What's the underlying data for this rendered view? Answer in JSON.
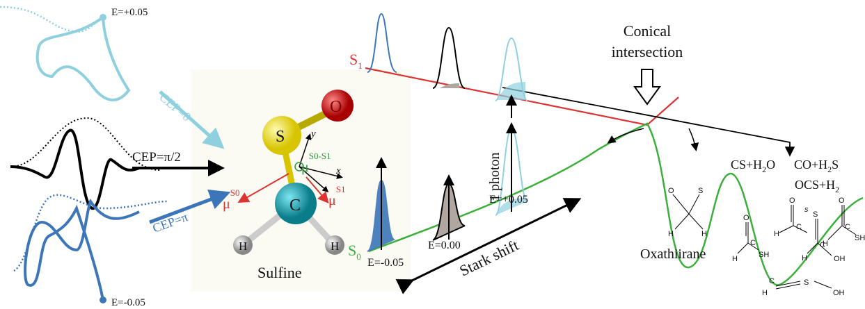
{
  "pulses": {
    "top_label": "E=+0.05",
    "bottom_label": "E=-0.05",
    "cep_0": "CEP=0",
    "cep_half_pi": "CEP=π/2",
    "cep_pi": "CEP=π"
  },
  "molecule": {
    "atoms": [
      "S",
      "O",
      "C",
      "H",
      "H"
    ],
    "axes": [
      "y",
      "x"
    ],
    "dipoles": [
      {
        "symbol": "μ",
        "sup": "S0-S1"
      },
      {
        "symbol": "μ",
        "sup": "S0"
      },
      {
        "symbol": "μ",
        "sup": "S1"
      }
    ],
    "name": "Sulfine"
  },
  "states": [
    {
      "base": "S",
      "sub": "1"
    },
    {
      "base": "S",
      "sub": "0"
    }
  ],
  "conical_intersection": {
    "line1": "Conical",
    "line2": "intersection"
  },
  "excitation": "1 photon",
  "field_labels": [
    "E=+0.05",
    "E=0.00",
    "E=-0.05"
  ],
  "stark_shift": "Stark shift",
  "products": [
    {
      "a": "CS+H",
      "sub": "2",
      "b": "O"
    },
    {
      "a": "CO+H",
      "sub": "2",
      "b": "S"
    },
    {
      "a": "OCS+H",
      "sub": "2"
    }
  ],
  "oxathiirane": "Oxathiirane",
  "structures": {
    "ring": [
      "O",
      "S",
      "H",
      "H"
    ],
    "thiol": [
      "O",
      "C",
      "H",
      "SH"
    ],
    "radical": [
      "O",
      "C",
      "H",
      "s"
    ],
    "thioacid": [
      "S",
      "C",
      "H",
      "OH"
    ],
    "acid": [
      "O",
      "C",
      "H",
      "SH"
    ],
    "alkyne": [
      "H",
      "C",
      "S",
      "OH"
    ]
  }
}
